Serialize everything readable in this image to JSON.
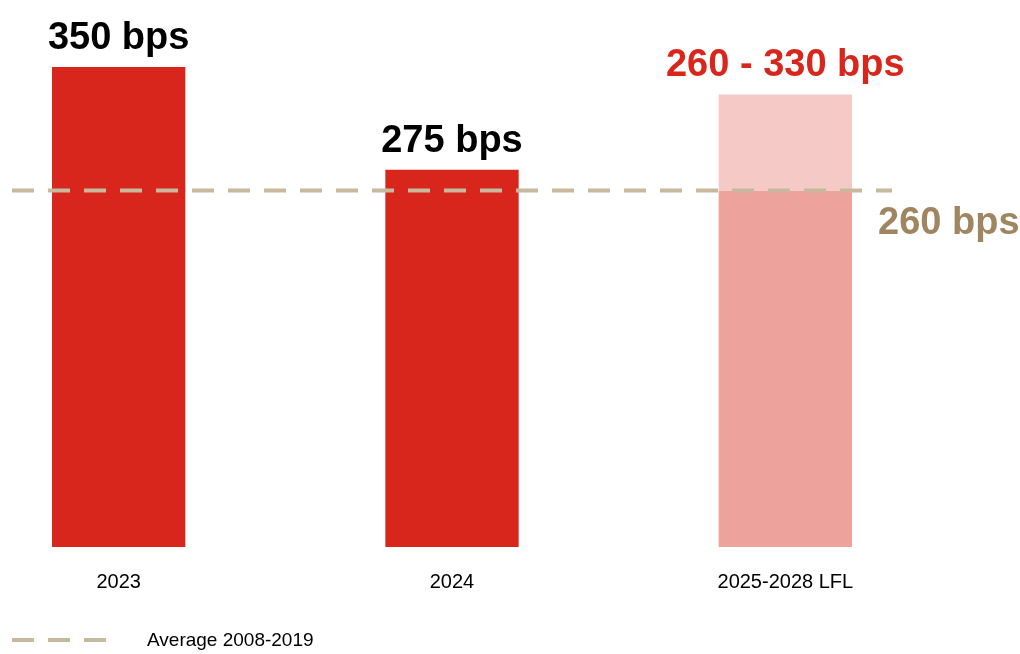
{
  "chart_data": {
    "type": "bar",
    "stacked": true,
    "categories": [
      "2023",
      "2024",
      "2025-2028 LFL"
    ],
    "series": [
      {
        "values": [
          350,
          275,
          260
        ],
        "colors": [
          "#d9261c",
          "#d9261c",
          "#eea29c"
        ],
        "value_labels": [
          "350 bps",
          "275 bps",
          null
        ]
      },
      {
        "values": [
          null,
          null,
          70
        ],
        "color": "#f5c9c5"
      }
    ],
    "ref_lines": [
      {
        "axis": "y",
        "value": 260,
        "label": "260 bps",
        "color": "#c8b89e",
        "line_style": "dashed"
      }
    ],
    "annotations": [
      {
        "text": "260 - 330 bps",
        "x": "2025-2028 LFL",
        "y": 330
      },
      "Average 2008-2019"
    ]
  }
}
